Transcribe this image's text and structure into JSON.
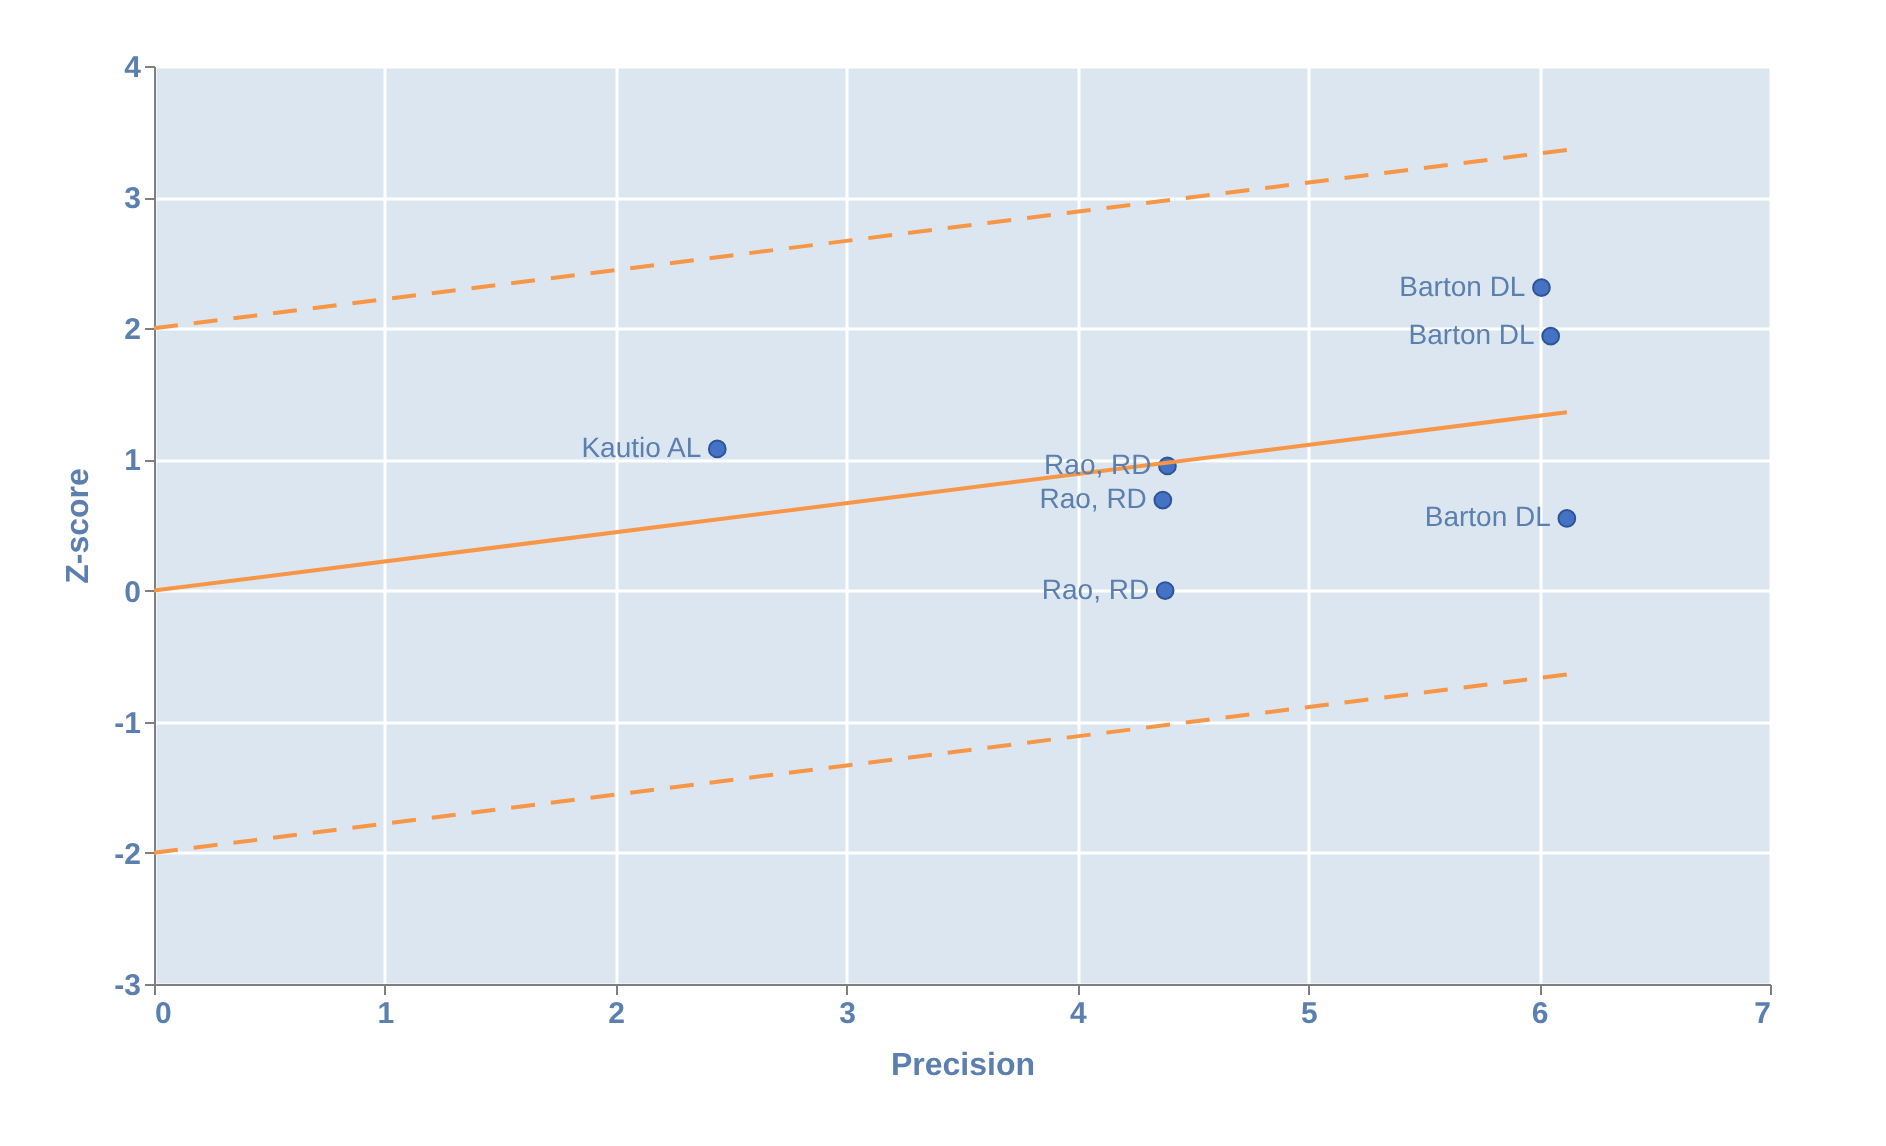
{
  "chart_data": {
    "type": "scatter",
    "xlabel": "Precision",
    "ylabel": "Z-score",
    "xlim": [
      0,
      7
    ],
    "xticks": [
      0,
      1,
      2,
      3,
      4,
      5,
      6,
      7
    ],
    "ylim": [
      -3,
      4
    ],
    "yticks": [
      -3,
      -2,
      -1,
      0,
      1,
      2,
      3,
      4
    ],
    "grid": true,
    "series": [
      {
        "marker": "circle",
        "color": "#4472c4",
        "x": [
          2.44,
          4.39,
          4.37,
          4.38,
          6.01,
          6.05,
          6.12
        ],
        "values": [
          1.08,
          0.95,
          0.69,
          0.0,
          2.31,
          1.94,
          0.55
        ]
      },
      {
        "type": "line",
        "color": "#f79646",
        "line_style": "solid",
        "x": [
          0,
          6.12
        ],
        "values": [
          0,
          1.36
        ]
      },
      {
        "type": "line",
        "color": "#f79646",
        "line_style": "dashed",
        "x": [
          0,
          6.12
        ],
        "values": [
          2,
          3.36
        ]
      },
      {
        "type": "line",
        "color": "#f79646",
        "line_style": "dashed",
        "x": [
          0,
          6.12
        ],
        "values": [
          -2,
          -0.64
        ]
      }
    ],
    "annotations": [
      {
        "text": "Kautio AL",
        "x": 2.44,
        "y": 1.08
      },
      {
        "text": "Rao, RD",
        "x": 4.39,
        "y": 0.95
      },
      {
        "text": "Rao, RD",
        "x": 4.37,
        "y": 0.69
      },
      {
        "text": "Rao, RD",
        "x": 4.38,
        "y": 0.0
      },
      {
        "text": "Barton DL",
        "x": 6.01,
        "y": 2.31
      },
      {
        "text": "Barton DL",
        "x": 6.05,
        "y": 1.94
      },
      {
        "text": "Barton DL",
        "x": 6.12,
        "y": 0.55
      }
    ]
  }
}
